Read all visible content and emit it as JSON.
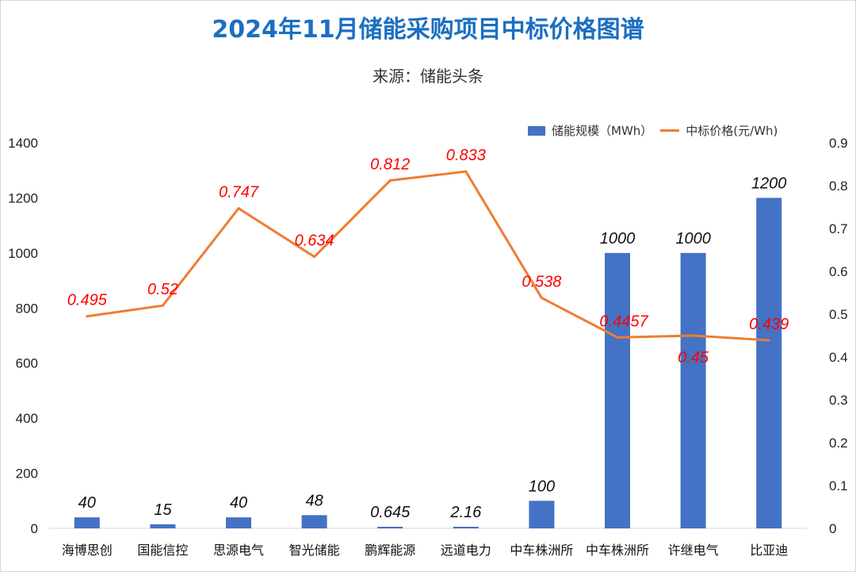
{
  "title": "2024年11月储能采购项目中标价格图谱",
  "subtitle": "来源：储能头条",
  "colors": {
    "bar": "#4472c4",
    "line": "#ed7d31",
    "label_price": "#ff0000",
    "title": "#1b6fc2"
  },
  "chart_data": {
    "type": "bar",
    "title": "2024年11月储能采购项目中标价格图谱",
    "categories": [
      "海博思创",
      "国能信控",
      "思源电气",
      "智光储能",
      "鹏辉能源",
      "远道电力",
      "中车株洲所",
      "中车株洲所",
      "许继电气",
      "比亚迪"
    ],
    "series": [
      {
        "name": "储能规模（MWh）",
        "type": "bar",
        "axis": "left",
        "values": [
          40,
          15,
          40,
          48,
          0.645,
          2.16,
          100,
          1000,
          1000,
          1200
        ],
        "labels": [
          "40",
          "15",
          "40",
          "48",
          "0.645",
          "2.16",
          "100",
          "1000",
          "1000",
          "1200"
        ]
      },
      {
        "name": "中标价格(元/Wh)",
        "type": "line",
        "axis": "right",
        "values": [
          0.495,
          0.52,
          0.747,
          0.634,
          0.812,
          0.833,
          0.538,
          0.4457,
          0.45,
          0.439
        ],
        "labels": [
          "0.495",
          "0.52",
          "0.747",
          "0.634",
          "0.812",
          "0.833",
          "0.538",
          "0.4457",
          "0.45",
          "0.439"
        ]
      }
    ],
    "y_left": {
      "min": 0,
      "max": 1400,
      "ticks": [
        "0",
        "200",
        "400",
        "600",
        "800",
        "1000",
        "1200",
        "1400"
      ]
    },
    "y_right": {
      "min": 0,
      "max": 0.9,
      "ticks": [
        "0",
        "0.1",
        "0.2",
        "0.3",
        "0.4",
        "0.5",
        "0.6",
        "0.7",
        "0.8",
        "0.9"
      ]
    },
    "legend_position": "top-right",
    "grid": false
  }
}
